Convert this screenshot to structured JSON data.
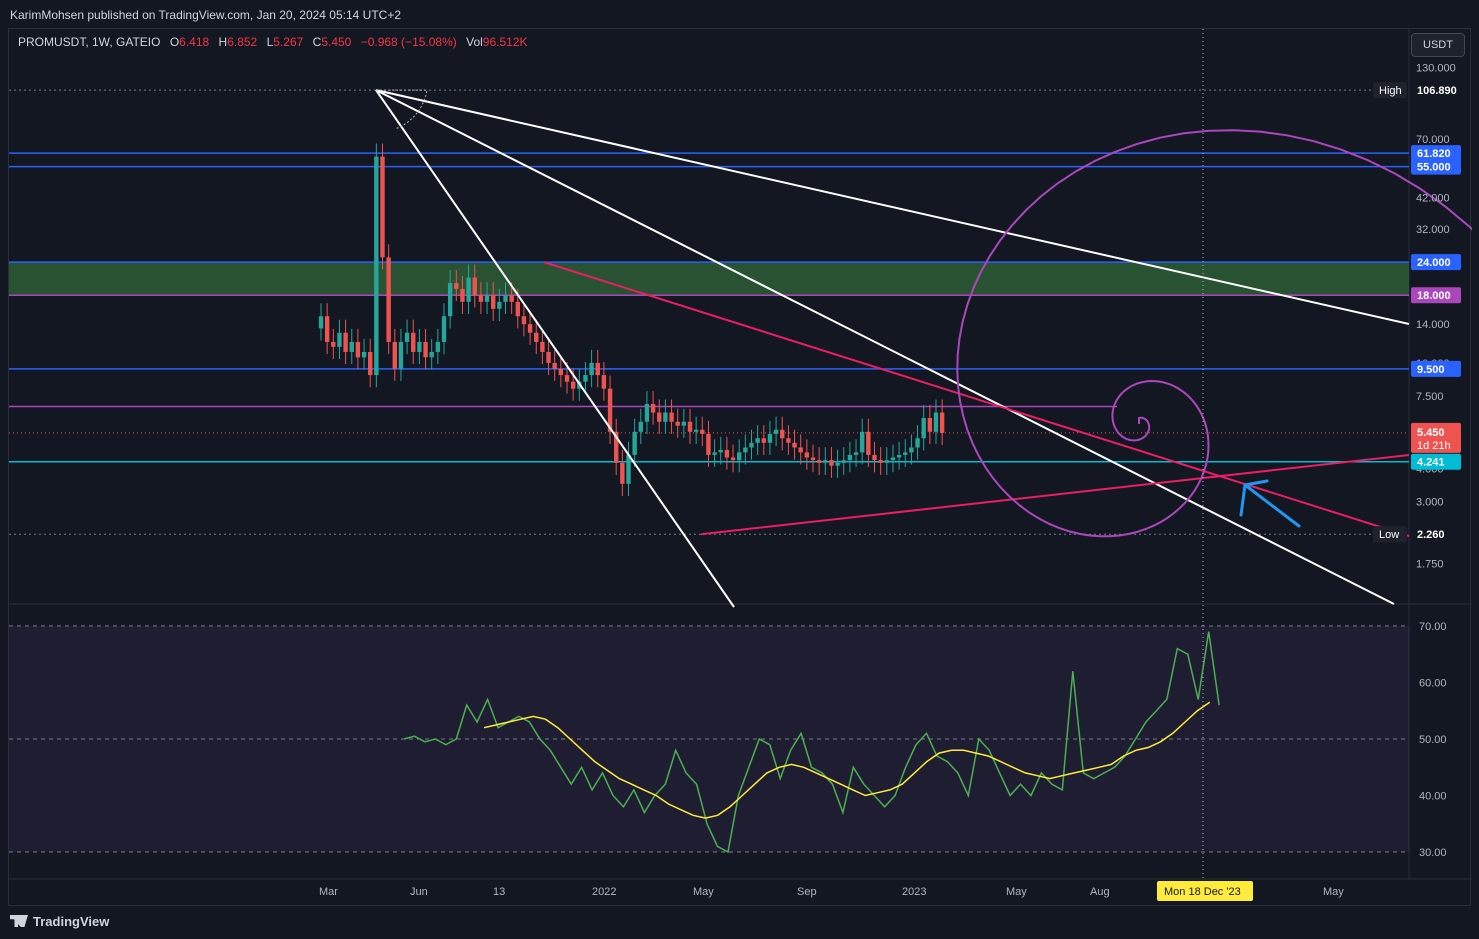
{
  "header": {
    "published": "KarimMohsen published on TradingView.com, Jan 20, 2024 05:14 UTC+2"
  },
  "legend": {
    "symbol": "PROMUSDT, 1W, GATEIO",
    "open_label": "O",
    "open": "6.418",
    "high_label": "H",
    "high": "6.852",
    "low_label": "L",
    "low": "5.267",
    "close_label": "C",
    "close": "5.450",
    "change": "−0.968 (−15.08%)",
    "vol_label": "Vol",
    "vol": "96.512K"
  },
  "currency": "USDT",
  "footer": {
    "brand": "TradingView"
  },
  "colors": {
    "bg": "#131722",
    "up": "#26a69a",
    "down": "#ef5350",
    "blue": "#2962ff",
    "magenta": "#ab47bc",
    "pink": "#e91e63",
    "cyan": "#00bcd4",
    "green_zone": "#2e5d35",
    "rsi": "#4caf50",
    "rsi_ma": "#ffeb3b",
    "arrow": "#2196f3"
  },
  "chart_data": [
    {
      "type": "candlestick",
      "scale": "log",
      "ylim": [
        1.6,
        140
      ],
      "y_ticks": [
        "130.000",
        "70.000",
        "42.000",
        "32.000",
        "14.000",
        "10.000",
        "7.500",
        "4.000",
        "3.000",
        "1.750"
      ],
      "x_ticks": [
        "Mar",
        "Jun",
        "13",
        "2022",
        "May",
        "Sep",
        "2023",
        "May",
        "Aug",
        "May"
      ],
      "crosshair_date": "Mon 18 Dec '23",
      "levels": [
        {
          "label": "High",
          "value": "106.890",
          "style": "dotted"
        },
        {
          "value": "61.820",
          "color": "blue"
        },
        {
          "value": "55.000",
          "color": "blue"
        },
        {
          "value": "24.000",
          "color": "blue"
        },
        {
          "value": "18.000",
          "color": "magenta"
        },
        {
          "value": "9.500",
          "color": "blue"
        },
        {
          "value": "4.241",
          "color": "cyan"
        },
        {
          "label": "Low",
          "value": "2.260",
          "style": "dotted"
        }
      ],
      "last_price": {
        "value": "5.450",
        "countdown": "1d 21h"
      },
      "candles_close": [
        15,
        12,
        11.5,
        13,
        11,
        12,
        10.5,
        11,
        9,
        60,
        25,
        12,
        9.5,
        12,
        13,
        11,
        12,
        10.5,
        11,
        12,
        15,
        20,
        19,
        17,
        21,
        18,
        17,
        18,
        16,
        17,
        18,
        17,
        15,
        14,
        13,
        12,
        11,
        10,
        9.5,
        9,
        8.5,
        8,
        8.5,
        9,
        10,
        9,
        8,
        5.5,
        4.2,
        3.5,
        4.5,
        5.5,
        6,
        7,
        6.5,
        6,
        6.5,
        6,
        5.8,
        6,
        5.5,
        5.6,
        5.4,
        4.5,
        4.6,
        4.7,
        4.4,
        4.3,
        4.6,
        4.8,
        5,
        5.2,
        5,
        5.4,
        5.6,
        5.2,
        5,
        4.8,
        4.6,
        4.4,
        4.3,
        4.2,
        4.3,
        4.1,
        4.2,
        4.3,
        4.5,
        4.6,
        5.5,
        4.5,
        4.3,
        4.2,
        4.3,
        4.4,
        4.5,
        4.6,
        4.8,
        5.2,
        6.2,
        5.5,
        6.5,
        5.45
      ]
    },
    {
      "type": "line",
      "name": "RSI",
      "ylim": [
        27,
        73
      ],
      "y_ticks": [
        "70.00",
        "60.00",
        "50.00",
        "40.00",
        "30.00"
      ],
      "bands": [
        70,
        30
      ],
      "midline": 50,
      "rsi": [
        50,
        50.5,
        49.5,
        50,
        49,
        50,
        56,
        53,
        57,
        52,
        53,
        54,
        53,
        50,
        48,
        45,
        42,
        45,
        41,
        44,
        40,
        38,
        41,
        37,
        40,
        42,
        48,
        44,
        42,
        35,
        31,
        30,
        40,
        45,
        50,
        49,
        43,
        48,
        51,
        45,
        44,
        42,
        37,
        45,
        42,
        40,
        38,
        40,
        45,
        49,
        51,
        47,
        46,
        44,
        40,
        50,
        48,
        44,
        40,
        42,
        40,
        44,
        42,
        41,
        62,
        44,
        43,
        44,
        45,
        47,
        50,
        53,
        55,
        57,
        66,
        65,
        57,
        69,
        56
      ],
      "ma": [
        52,
        52.5,
        53,
        53.5,
        54,
        53.5,
        52,
        50,
        48,
        46,
        44.5,
        43,
        42,
        41,
        40,
        38.5,
        37.5,
        36.5,
        36,
        36.5,
        38,
        40,
        42,
        44,
        45,
        45.5,
        45,
        44,
        43,
        42,
        41,
        40,
        40.5,
        41,
        42,
        44,
        46,
        47.5,
        48,
        48,
        47.5,
        47,
        46,
        45,
        44,
        43.5,
        43,
        43.5,
        44,
        44.5,
        45,
        45.5,
        47,
        48,
        48.5,
        49.5,
        51,
        53,
        55,
        56.5
      ]
    }
  ]
}
